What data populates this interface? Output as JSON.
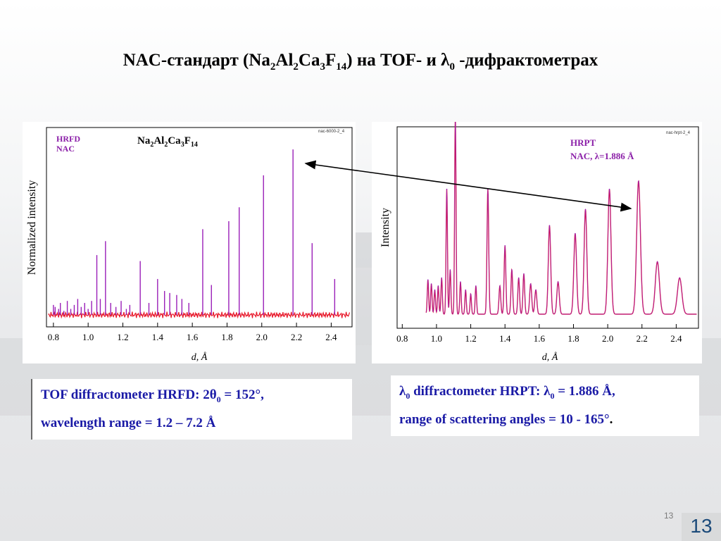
{
  "slide": {
    "title_parts": [
      "NAC-стандарт (Na",
      "2",
      "Al",
      "2",
      "Ca",
      "3",
      "F",
      "14",
      ") на TOF- и λ",
      "0",
      " -дифрактометрах"
    ],
    "page_small": "13",
    "page_big": "13"
  },
  "captions": {
    "left_line1_parts": [
      "TOF diffractometer HRFD: 2θ",
      "0",
      " = 152°,"
    ],
    "left_line2": "wavelength range = 1.2 – 7.2 Å",
    "right_line1_parts": [
      "λ",
      "0",
      " diffractometer HRPT: λ",
      "0",
      " = 1.886 Å,"
    ],
    "right_line2": "range of scattering angles = 10 - 165°"
  },
  "colors": {
    "data_red": "#e8182a",
    "data_purple": "#9a1fb8",
    "label_purple": "#8b1fa8",
    "caption_blue": "#1a1aa6"
  },
  "chart_data": [
    {
      "type": "line",
      "title_parts": [
        "Na",
        "2",
        "Al",
        "2",
        "Ca",
        "3",
        "F",
        "14"
      ],
      "legend": [
        "HRFD",
        "NAC"
      ],
      "file_tag": "nac-6000-2_4",
      "xlabel": "d, Å",
      "ylabel": "Normalized intensity",
      "xlim": [
        0.76,
        2.52
      ],
      "ylim": [
        0,
        1.0
      ],
      "x_ticks": [
        "0.8",
        "1.0",
        "1.2",
        "1.4",
        "1.6",
        "1.8",
        "2.0",
        "2.2",
        "2.4"
      ],
      "baseline": 0.06,
      "peaks": [
        {
          "d": 0.8,
          "h": 0.11
        },
        {
          "d": 0.81,
          "h": 0.1
        },
        {
          "d": 0.83,
          "h": 0.09
        },
        {
          "d": 0.84,
          "h": 0.12
        },
        {
          "d": 0.86,
          "h": 0.08
        },
        {
          "d": 0.88,
          "h": 0.13
        },
        {
          "d": 0.9,
          "h": 0.09
        },
        {
          "d": 0.92,
          "h": 0.11
        },
        {
          "d": 0.94,
          "h": 0.14
        },
        {
          "d": 0.96,
          "h": 0.1
        },
        {
          "d": 0.98,
          "h": 0.12
        },
        {
          "d": 1.0,
          "h": 0.09
        },
        {
          "d": 1.02,
          "h": 0.13
        },
        {
          "d": 1.05,
          "h": 0.36
        },
        {
          "d": 1.07,
          "h": 0.14
        },
        {
          "d": 1.1,
          "h": 0.43
        },
        {
          "d": 1.13,
          "h": 0.12
        },
        {
          "d": 1.16,
          "h": 0.1
        },
        {
          "d": 1.19,
          "h": 0.13
        },
        {
          "d": 1.22,
          "h": 0.09
        },
        {
          "d": 1.24,
          "h": 0.11
        },
        {
          "d": 1.3,
          "h": 0.33
        },
        {
          "d": 1.35,
          "h": 0.12
        },
        {
          "d": 1.4,
          "h": 0.24
        },
        {
          "d": 1.44,
          "h": 0.18
        },
        {
          "d": 1.47,
          "h": 0.17
        },
        {
          "d": 1.51,
          "h": 0.16
        },
        {
          "d": 1.54,
          "h": 0.14
        },
        {
          "d": 1.58,
          "h": 0.12
        },
        {
          "d": 1.66,
          "h": 0.49
        },
        {
          "d": 1.71,
          "h": 0.21
        },
        {
          "d": 1.81,
          "h": 0.53
        },
        {
          "d": 1.87,
          "h": 0.6
        },
        {
          "d": 2.01,
          "h": 0.76
        },
        {
          "d": 2.18,
          "h": 0.89
        },
        {
          "d": 2.29,
          "h": 0.42
        },
        {
          "d": 2.42,
          "h": 0.24
        }
      ]
    },
    {
      "type": "line",
      "legend_line1": "HRPT",
      "legend_line2": "NAC, λ=1.886 Å",
      "file_tag": "nac-hrpt-2_4",
      "xlabel": "d, Å",
      "ylabel": "Intensity",
      "xlim": [
        0.77,
        2.53
      ],
      "ylim": [
        0,
        1.0
      ],
      "x_ticks": [
        "0.8",
        "1.0",
        "1.2",
        "1.4",
        "1.6",
        "1.8",
        "2.0",
        "2.2",
        "2.4"
      ],
      "baseline": 0.07,
      "peaks": [
        {
          "d": 0.95,
          "h": 0.17,
          "w": 0.004
        },
        {
          "d": 0.97,
          "h": 0.15,
          "w": 0.004
        },
        {
          "d": 0.99,
          "h": 0.12,
          "w": 0.004
        },
        {
          "d": 1.01,
          "h": 0.14,
          "w": 0.004
        },
        {
          "d": 1.03,
          "h": 0.18,
          "w": 0.004
        },
        {
          "d": 1.06,
          "h": 0.62,
          "w": 0.004
        },
        {
          "d": 1.08,
          "h": 0.22,
          "w": 0.004
        },
        {
          "d": 1.11,
          "h": 0.99,
          "w": 0.004
        },
        {
          "d": 1.14,
          "h": 0.16,
          "w": 0.004
        },
        {
          "d": 1.17,
          "h": 0.12,
          "w": 0.004
        },
        {
          "d": 1.2,
          "h": 0.1,
          "w": 0.004
        },
        {
          "d": 1.23,
          "h": 0.14,
          "w": 0.004
        },
        {
          "d": 1.3,
          "h": 0.62,
          "w": 0.005
        },
        {
          "d": 1.37,
          "h": 0.14,
          "w": 0.005
        },
        {
          "d": 1.4,
          "h": 0.34,
          "w": 0.005
        },
        {
          "d": 1.44,
          "h": 0.22,
          "w": 0.005
        },
        {
          "d": 1.48,
          "h": 0.18,
          "w": 0.005
        },
        {
          "d": 1.51,
          "h": 0.2,
          "w": 0.005
        },
        {
          "d": 1.55,
          "h": 0.15,
          "w": 0.006
        },
        {
          "d": 1.58,
          "h": 0.12,
          "w": 0.006
        },
        {
          "d": 1.66,
          "h": 0.44,
          "w": 0.007
        },
        {
          "d": 1.71,
          "h": 0.16,
          "w": 0.007
        },
        {
          "d": 1.81,
          "h": 0.4,
          "w": 0.008
        },
        {
          "d": 1.87,
          "h": 0.52,
          "w": 0.008
        },
        {
          "d": 2.01,
          "h": 0.62,
          "w": 0.009
        },
        {
          "d": 2.18,
          "h": 0.66,
          "w": 0.011
        },
        {
          "d": 2.29,
          "h": 0.26,
          "w": 0.012
        },
        {
          "d": 2.42,
          "h": 0.18,
          "w": 0.013
        }
      ]
    }
  ]
}
